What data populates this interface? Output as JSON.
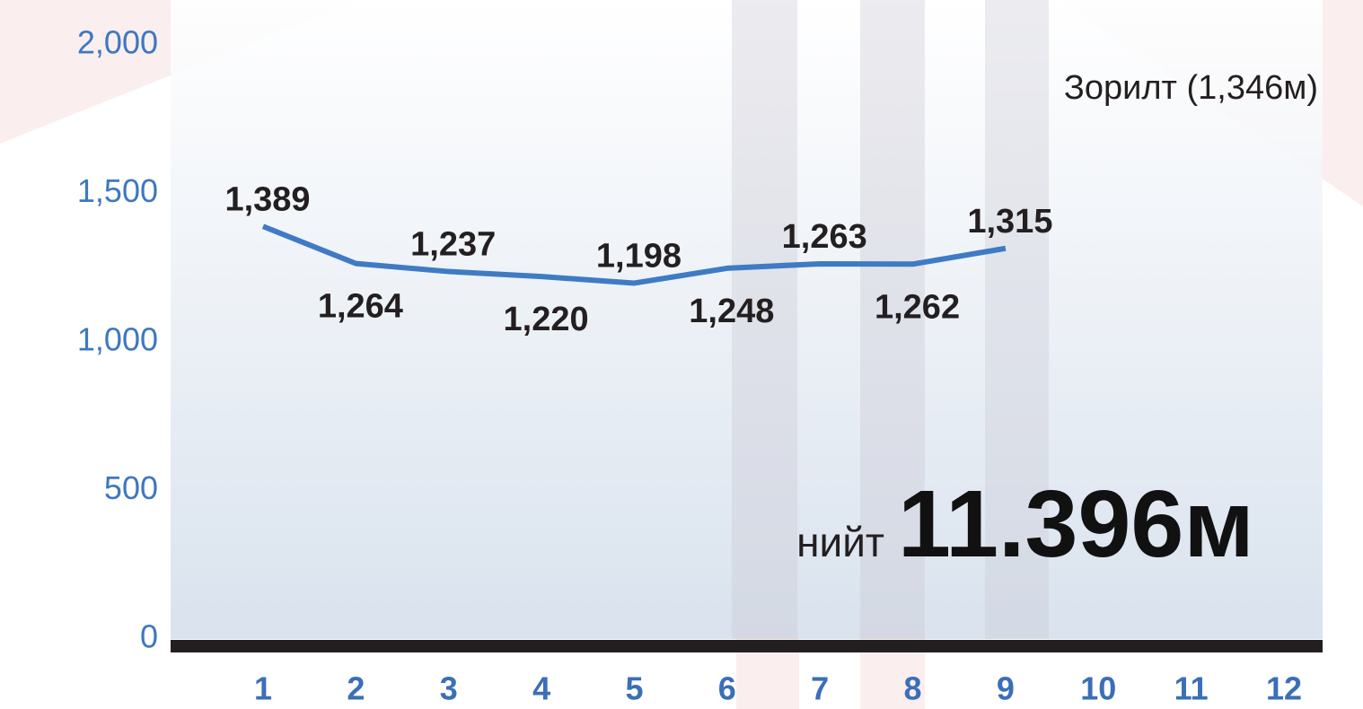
{
  "chart_data": {
    "type": "line",
    "categories": [
      "1",
      "2",
      "3",
      "4",
      "5",
      "6",
      "7",
      "8",
      "9",
      "10",
      "11",
      "12"
    ],
    "series": [
      {
        "color": "#3f7bc4",
        "values": [
          1389,
          1264,
          1237,
          1220,
          1198,
          1248,
          1263,
          1262,
          1315,
          null,
          null,
          null
        ],
        "value_labels": [
          "1,389",
          "1,264",
          "1,237",
          "1,220",
          "1,198",
          "1,248",
          "1,263",
          "1,262",
          "1,315",
          null,
          null,
          null
        ]
      }
    ],
    "ylim": [
      0,
      2000
    ],
    "yticks": [
      0,
      500,
      {
        "value": 1000,
        "label": "1,000"
      },
      {
        "value": 1500,
        "label": "1,500"
      },
      {
        "value": 2000,
        "label": "2,000"
      }
    ],
    "annotations": {
      "target": "Зорилт (1,346м)",
      "total_label": "нийт",
      "total_value": "11.396м"
    }
  }
}
